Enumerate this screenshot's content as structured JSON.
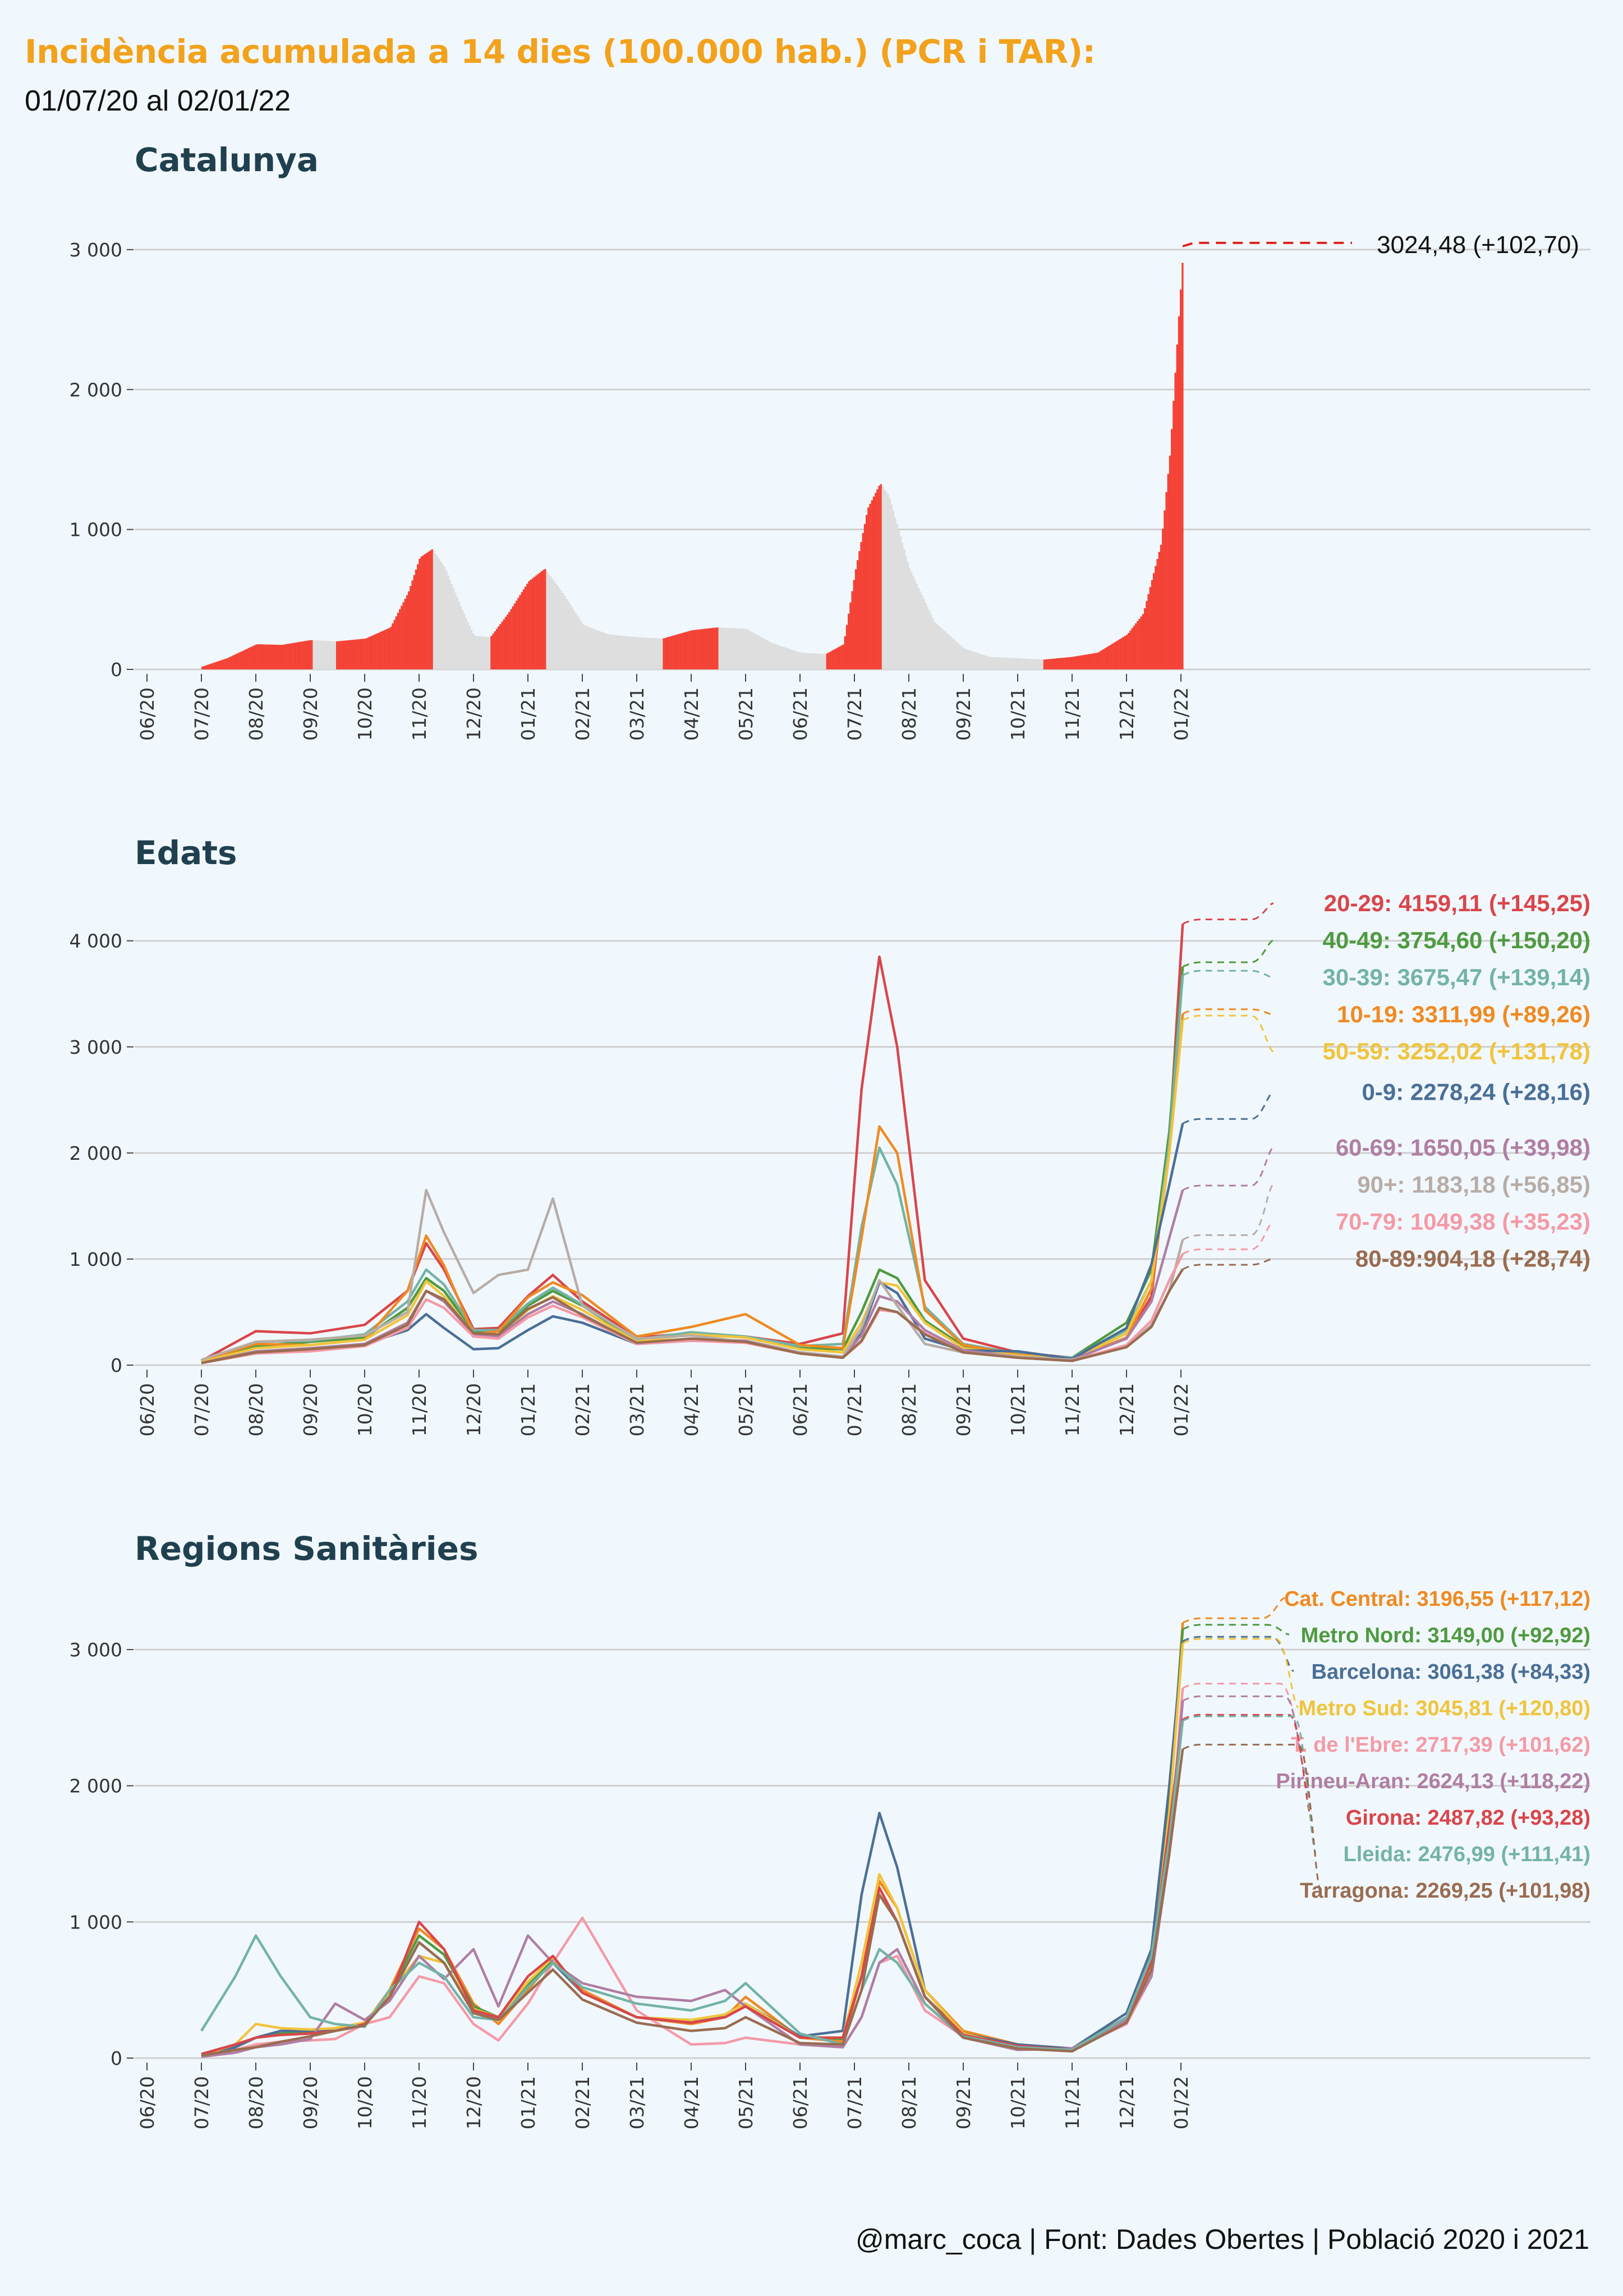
{
  "header": {
    "title": "Incidència acumulada a 14 dies (100.000 hab.) (PCR i TAR):",
    "subtitle": "01/07/20 al 02/01/22"
  },
  "caption": "@marc_coca | Font: Dades Obertes | Població 2020 i 2021",
  "colors": {
    "bar_highlight": "#f44336",
    "bar_muted": "#dedede",
    "gridline": "#cfcfcf",
    "panel_title": "#20404f"
  },
  "chart_data": [
    {
      "type": "bar",
      "title": "Catalunya",
      "x_tick_labels": [
        "06/20",
        "07/20",
        "08/20",
        "09/20",
        "10/20",
        "11/20",
        "12/20",
        "01/21",
        "02/21",
        "03/21",
        "04/21",
        "05/21",
        "06/21",
        "07/21",
        "08/21",
        "09/21",
        "10/21",
        "11/21",
        "12/21",
        "01/22"
      ],
      "xlim": [
        "2020-06-01",
        "2022-03-01"
      ],
      "ylim": [
        0,
        3200
      ],
      "y_ticks": [
        0,
        1000,
        2000,
        3000
      ],
      "y_tick_labels": [
        "0",
        "1 000",
        "2 000",
        "3 000"
      ],
      "x": [
        "2020-07-01",
        "2020-07-15",
        "2020-08-01",
        "2020-08-15",
        "2020-09-01",
        "2020-09-15",
        "2020-10-01",
        "2020-10-15",
        "2020-10-25",
        "2020-11-01",
        "2020-11-08",
        "2020-11-15",
        "2020-11-25",
        "2020-12-01",
        "2020-12-10",
        "2020-12-20",
        "2021-01-01",
        "2021-01-10",
        "2021-01-20",
        "2021-02-01",
        "2021-02-15",
        "2021-03-01",
        "2021-03-15",
        "2021-04-01",
        "2021-04-15",
        "2021-05-01",
        "2021-05-15",
        "2021-06-01",
        "2021-06-15",
        "2021-06-25",
        "2021-07-01",
        "2021-07-08",
        "2021-07-15",
        "2021-07-20",
        "2021-08-01",
        "2021-08-15",
        "2021-09-01",
        "2021-09-15",
        "2021-10-01",
        "2021-10-15",
        "2021-11-01",
        "2021-11-15",
        "2021-12-01",
        "2021-12-10",
        "2021-12-20",
        "2021-12-25",
        "2021-12-30",
        "2022-01-02"
      ],
      "values": [
        20,
        80,
        180,
        175,
        210,
        200,
        220,
        300,
        550,
        800,
        860,
        730,
        420,
        240,
        230,
        400,
        630,
        720,
        550,
        320,
        250,
        230,
        220,
        280,
        300,
        290,
        190,
        120,
        110,
        180,
        700,
        1150,
        1330,
        1240,
        720,
        340,
        150,
        90,
        80,
        70,
        90,
        120,
        250,
        400,
        900,
        1550,
        2550,
        3024
      ],
      "end_label": "3024,48 (+102,70)"
    },
    {
      "type": "line",
      "title": "Edats",
      "x_tick_labels": [
        "06/20",
        "07/20",
        "08/20",
        "09/20",
        "10/20",
        "11/20",
        "12/20",
        "01/21",
        "02/21",
        "03/21",
        "04/21",
        "05/21",
        "06/21",
        "07/21",
        "08/21",
        "09/21",
        "10/21",
        "11/21",
        "12/21",
        "01/22"
      ],
      "xlim": [
        "2020-06-01",
        "2022-03-01"
      ],
      "ylim": [
        0,
        4300
      ],
      "y_ticks": [
        0,
        1000,
        2000,
        3000,
        4000
      ],
      "y_tick_labels": [
        "0",
        "1 000",
        "2 000",
        "3 000",
        "4 000"
      ],
      "x": [
        "2020-07-01",
        "2020-08-01",
        "2020-09-01",
        "2020-10-01",
        "2020-10-25",
        "2020-11-05",
        "2020-11-15",
        "2020-12-01",
        "2020-12-15",
        "2021-01-01",
        "2021-01-15",
        "2021-02-01",
        "2021-03-01",
        "2021-04-01",
        "2021-05-01",
        "2021-06-01",
        "2021-06-25",
        "2021-07-05",
        "2021-07-15",
        "2021-07-25",
        "2021-08-10",
        "2021-09-01",
        "2021-10-01",
        "2021-11-01",
        "2021-12-01",
        "2021-12-15",
        "2021-12-25",
        "2022-01-02"
      ],
      "series": [
        {
          "name": "20-29",
          "color": "#d9454a",
          "values": [
            40,
            320,
            300,
            380,
            700,
            1150,
            900,
            340,
            350,
            650,
            850,
            600,
            260,
            300,
            270,
            200,
            300,
            2600,
            3850,
            3000,
            800,
            250,
            120,
            70,
            250,
            650,
            2100,
            4159
          ],
          "end_label": "20-29: 4159,11 (+145,25)"
        },
        {
          "name": "40-49",
          "color": "#4f9a3f",
          "values": [
            30,
            180,
            220,
            260,
            540,
            820,
            700,
            320,
            320,
            560,
            700,
            560,
            230,
            300,
            260,
            160,
            150,
            500,
            900,
            820,
            420,
            180,
            100,
            70,
            400,
            900,
            2200,
            3755
          ],
          "end_label": "40-49: 3754,60 (+150,20)"
        },
        {
          "name": "30-39",
          "color": "#73b3a6",
          "values": [
            30,
            220,
            230,
            290,
            600,
            900,
            760,
            330,
            330,
            580,
            730,
            570,
            240,
            310,
            270,
            180,
            200,
            1300,
            2050,
            1700,
            550,
            200,
            110,
            70,
            330,
            800,
            2100,
            3675
          ],
          "end_label": "30-39: 3675,47 (+139,14)"
        },
        {
          "name": "10-19",
          "color": "#ef8a22",
          "values": [
            40,
            200,
            190,
            240,
            700,
            1220,
            940,
            290,
            320,
            640,
            780,
            660,
            270,
            360,
            480,
            190,
            160,
            1200,
            2250,
            2000,
            520,
            190,
            100,
            60,
            260,
            720,
            2000,
            3312
          ],
          "end_label": "10-19: 3311,99 (+89,26)"
        },
        {
          "name": "50-59",
          "color": "#f0c43c",
          "values": [
            30,
            160,
            190,
            240,
            470,
            790,
            650,
            290,
            280,
            520,
            650,
            520,
            220,
            290,
            260,
            150,
            120,
            400,
            780,
            750,
            400,
            160,
            90,
            60,
            300,
            800,
            2000,
            3252
          ],
          "end_label": "50-59: 3252,02 (+131,78)"
        },
        {
          "name": "0-9",
          "color": "#4a6f98",
          "values": [
            20,
            130,
            150,
            200,
            330,
            480,
            350,
            150,
            160,
            330,
            460,
            400,
            200,
            230,
            220,
            120,
            80,
            300,
            780,
            680,
            250,
            140,
            130,
            60,
            350,
            950,
            1700,
            2278
          ],
          "end_label": "0-9: 2278,24 (+28,16)"
        },
        {
          "name": "60-69",
          "color": "#b07ea3",
          "values": [
            20,
            130,
            160,
            200,
            400,
            700,
            600,
            290,
            270,
            480,
            600,
            480,
            200,
            250,
            230,
            120,
            80,
            280,
            650,
            600,
            330,
            140,
            80,
            50,
            250,
            600,
            1200,
            1650
          ],
          "end_label": "60-69: 1650,05 (+39,98)"
        },
        {
          "name": "90+",
          "color": "#b7ada6",
          "values": [
            50,
            220,
            240,
            280,
            500,
            1650,
            1250,
            680,
            850,
            900,
            1570,
            560,
            250,
            280,
            220,
            120,
            80,
            350,
            800,
            560,
            200,
            120,
            80,
            50,
            170,
            380,
            700,
            1183
          ],
          "end_label": "90+: 1183,18 (+56,85)"
        },
        {
          "name": "70-79",
          "color": "#f49aa6",
          "values": [
            20,
            110,
            130,
            180,
            350,
            620,
            540,
            270,
            250,
            450,
            560,
            450,
            200,
            230,
            210,
            110,
            70,
            220,
            520,
            500,
            300,
            120,
            70,
            40,
            190,
            420,
            800,
            1049
          ],
          "end_label": "70-79: 1049,38 (+35,23)"
        },
        {
          "name": "80-89",
          "color": "#9a6c50",
          "values": [
            20,
            120,
            150,
            190,
            380,
            700,
            620,
            300,
            290,
            530,
            640,
            470,
            210,
            250,
            220,
            110,
            70,
            230,
            540,
            500,
            290,
            120,
            70,
            40,
            170,
            360,
            700,
            904
          ],
          "end_label": "80-89:904,18 (+28,74)"
        }
      ]
    },
    {
      "type": "line",
      "title": "Regions Sanitàries",
      "x_tick_labels": [
        "06/20",
        "07/20",
        "08/20",
        "09/20",
        "10/20",
        "11/20",
        "12/20",
        "01/21",
        "02/21",
        "03/21",
        "04/21",
        "05/21",
        "06/21",
        "07/21",
        "08/21",
        "09/21",
        "10/21",
        "11/21",
        "12/21",
        "01/22"
      ],
      "xlim": [
        "2020-06-01",
        "2022-03-01"
      ],
      "ylim": [
        0,
        3350
      ],
      "y_ticks": [
        0,
        1000,
        2000,
        3000
      ],
      "y_tick_labels": [
        "0",
        "1 000",
        "2 000",
        "3 000"
      ],
      "x": [
        "2020-07-01",
        "2020-07-20",
        "2020-08-01",
        "2020-08-15",
        "2020-09-01",
        "2020-09-15",
        "2020-10-01",
        "2020-10-15",
        "2020-11-01",
        "2020-11-15",
        "2020-12-01",
        "2020-12-15",
        "2021-01-01",
        "2021-01-15",
        "2021-02-01",
        "2021-03-01",
        "2021-04-01",
        "2021-04-20",
        "2021-05-01",
        "2021-06-01",
        "2021-06-25",
        "2021-07-05",
        "2021-07-15",
        "2021-07-25",
        "2021-08-10",
        "2021-09-01",
        "2021-10-01",
        "2021-11-01",
        "2021-12-01",
        "2021-12-15",
        "2021-12-25",
        "2022-01-02"
      ],
      "series": [
        {
          "name": "Cat. Central",
          "color": "#ef8a22",
          "values": [
            20,
            80,
            150,
            180,
            190,
            200,
            250,
            500,
            950,
            800,
            400,
            250,
            500,
            720,
            500,
            300,
            250,
            300,
            450,
            150,
            120,
            600,
            1300,
            1100,
            500,
            200,
            100,
            70,
            300,
            700,
            1800,
            3197
          ],
          "end_label": "Cat. Central: 3196,55 (+117,12)"
        },
        {
          "name": "Metro Nord",
          "color": "#4f9a3f",
          "values": [
            20,
            80,
            150,
            180,
            200,
            220,
            260,
            480,
            900,
            760,
            380,
            300,
            540,
            720,
            480,
            300,
            260,
            320,
            400,
            160,
            140,
            600,
            1200,
            1000,
            450,
            180,
            80,
            60,
            300,
            700,
            1900,
            3149
          ],
          "end_label": "Metro Nord: 3149,00 (+92,92)"
        },
        {
          "name": "Barcelona",
          "color": "#4a6f98",
          "values": [
            20,
            80,
            150,
            200,
            200,
            200,
            240,
            450,
            850,
            700,
            350,
            300,
            520,
            700,
            480,
            300,
            260,
            320,
            400,
            160,
            200,
            1200,
            1800,
            1400,
            500,
            180,
            100,
            70,
            330,
            800,
            2000,
            3061
          ],
          "end_label": "Barcelona: 3061,38 (+84,33)"
        },
        {
          "name": "Metro Sud",
          "color": "#f0c43c",
          "values": [
            20,
            100,
            250,
            220,
            210,
            220,
            260,
            480,
            750,
            700,
            360,
            300,
            560,
            740,
            480,
            300,
            280,
            320,
            400,
            150,
            150,
            700,
            1350,
            1100,
            500,
            180,
            80,
            60,
            280,
            650,
            1800,
            3046
          ],
          "end_label": "Metro Sud: 3045,81 (+120,80)"
        },
        {
          "name": "T. de l'Ebre",
          "color": "#f49aa6",
          "values": [
            20,
            60,
            100,
            120,
            130,
            140,
            250,
            300,
            600,
            550,
            250,
            130,
            400,
            700,
            1030,
            350,
            100,
            110,
            150,
            100,
            80,
            300,
            700,
            750,
            350,
            160,
            80,
            60,
            250,
            600,
            1500,
            2717
          ],
          "end_label": "T. de l'Ebre: 2717,39 (+101,62)"
        },
        {
          "name": "Pirineu-Aran",
          "color": "#b07ea3",
          "values": [
            10,
            40,
            80,
            100,
            140,
            400,
            280,
            420,
            750,
            580,
            800,
            380,
            900,
            700,
            550,
            450,
            420,
            500,
            380,
            100,
            80,
            300,
            700,
            800,
            400,
            150,
            60,
            70,
            280,
            600,
            1500,
            2624
          ],
          "end_label": "Pirineu-Aran: 2624,13 (+118,22)"
        },
        {
          "name": "Girona",
          "color": "#d9454a",
          "values": [
            30,
            100,
            150,
            170,
            180,
            200,
            250,
            450,
            1000,
            800,
            350,
            300,
            600,
            750,
            480,
            300,
            260,
            300,
            380,
            150,
            150,
            600,
            1250,
            1000,
            450,
            170,
            90,
            60,
            300,
            700,
            1700,
            2488
          ],
          "end_label": "Girona: 2487,82 (+93,28)"
        },
        {
          "name": "Lleida",
          "color": "#73b3a6",
          "values": [
            200,
            600,
            900,
            600,
            300,
            250,
            230,
            500,
            700,
            600,
            300,
            280,
            520,
            700,
            520,
            400,
            350,
            420,
            550,
            180,
            100,
            500,
            800,
            700,
            400,
            160,
            80,
            60,
            300,
            750,
            1600,
            2477
          ],
          "end_label": "Lleida: 2476,99 (+111,41)"
        },
        {
          "name": "Tarragona",
          "color": "#9a6c50",
          "values": [
            20,
            60,
            80,
            120,
            160,
            200,
            240,
            450,
            850,
            700,
            330,
            280,
            480,
            650,
            430,
            260,
            200,
            220,
            300,
            110,
            100,
            500,
            1200,
            1000,
            450,
            150,
            70,
            50,
            260,
            650,
            1500,
            2269
          ],
          "end_label": "Tarragona: 2269,25 (+101,98)"
        }
      ]
    }
  ]
}
